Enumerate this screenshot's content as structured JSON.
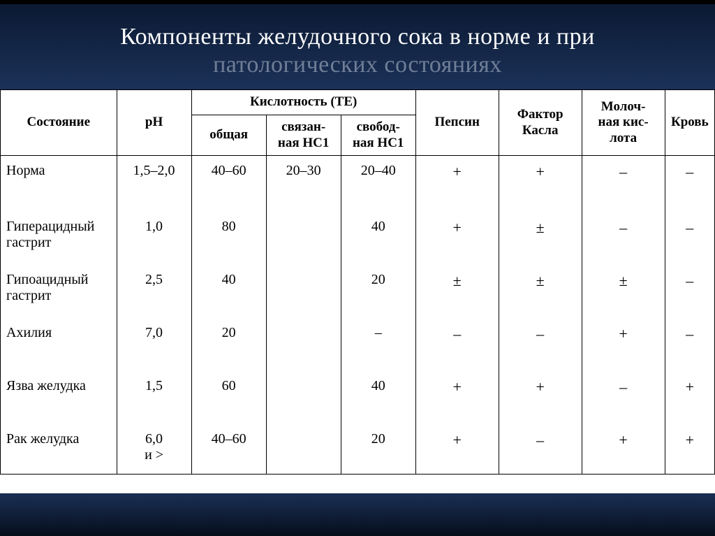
{
  "title": {
    "line1": "Компоненты желудочного сока в норме и при",
    "line2": "патологических состояниях"
  },
  "table": {
    "type": "table",
    "background_color": "#ffffff",
    "border_color": "#000000",
    "text_color": "#000000",
    "font_family": "Times New Roman",
    "header_fontsize": 19,
    "cell_fontsize": 20,
    "columns": {
      "state": "Состояние",
      "ph": "pH",
      "acidity_group": "Кислотность (ТЕ)",
      "acidity_total": "общая",
      "acidity_bound": "связан-\nная HC1",
      "acidity_free": "свобод-\nная HC1",
      "pepsin": "Пепсин",
      "castle": "Фактор\nКасла",
      "lactic": "Молоч-\nная кис-\nлота",
      "blood": "Кровь"
    },
    "rows": [
      {
        "state": "Норма",
        "ph": "1,5–2,0",
        "total": "40–60",
        "bound": "20–30",
        "free": "20–40",
        "pepsin": "+",
        "castle": "+",
        "lactic": "–",
        "blood": "–"
      },
      {
        "state": "Гиперацидный\nгастрит",
        "ph": "1,0",
        "total": "80",
        "bound": "",
        "free": "40",
        "pepsin": "+",
        "castle": "±",
        "lactic": "–",
        "blood": "–"
      },
      {
        "state": "Гипоацидный\nгастрит",
        "ph": "2,5",
        "total": "40",
        "bound": "",
        "free": "20",
        "pepsin": "±",
        "castle": "±",
        "lactic": "±",
        "blood": "–"
      },
      {
        "state": "Ахилия",
        "ph": "7,0",
        "total": "20",
        "bound": "",
        "free": "–",
        "pepsin": "–",
        "castle": "–",
        "lactic": "+",
        "blood": "–"
      },
      {
        "state": "Язва желудка",
        "ph": "1,5",
        "total": "60",
        "bound": "",
        "free": "40",
        "pepsin": "+",
        "castle": "+",
        "lactic": "–",
        "blood": "+"
      },
      {
        "state": "Рак желудка",
        "ph": "6,0\nи >",
        "total": "40–60",
        "bound": "",
        "free": "20",
        "pepsin": "+",
        "castle": "–",
        "lactic": "+",
        "blood": "+"
      }
    ]
  },
  "colors": {
    "bg_gradient_top": "#0a1830",
    "bg_gradient_mid": "#2a4575",
    "bg_gradient_bot": "#050d1a",
    "title_color": "#ffffff",
    "subtitle_color": "rgba(220,228,240,0.45)"
  }
}
